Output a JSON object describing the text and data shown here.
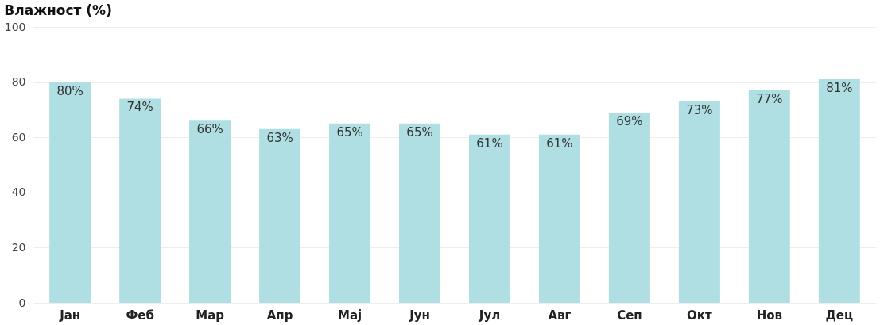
{
  "chart_data": {
    "type": "bar",
    "title": "Влажност (%)",
    "categories": [
      "Јан",
      "Феб",
      "Мар",
      "Апр",
      "Мај",
      "Јун",
      "Јул",
      "Авг",
      "Сеп",
      "Окт",
      "Нов",
      "Дец"
    ],
    "values": [
      80,
      74,
      66,
      63,
      65,
      65,
      61,
      61,
      69,
      73,
      77,
      81
    ],
    "value_labels": [
      "80%",
      "74%",
      "66%",
      "63%",
      "65%",
      "65%",
      "61%",
      "61%",
      "69%",
      "73%",
      "77%",
      "81%"
    ],
    "color": "#b0dfe3",
    "ylim": [
      0,
      100
    ],
    "yticks": [
      0,
      20,
      40,
      60,
      80,
      100
    ],
    "grid": "y"
  }
}
